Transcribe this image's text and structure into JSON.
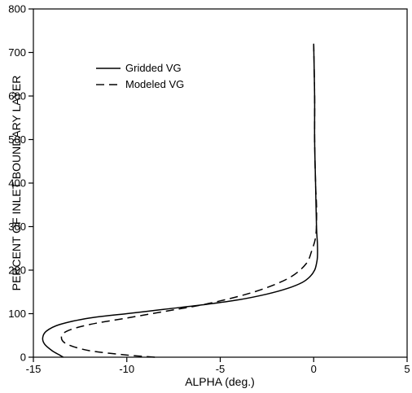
{
  "chart_data": {
    "type": "line",
    "title": "",
    "xlabel": "ALPHA (deg.)",
    "ylabel": "PERCENT OF INLET BOUNDARY LAYER",
    "xlim": [
      -15,
      5
    ],
    "ylim": [
      0,
      800
    ],
    "xticks": [
      -15,
      -10,
      -5,
      0,
      5
    ],
    "yticks": [
      0,
      100,
      200,
      300,
      400,
      500,
      600,
      700,
      800
    ],
    "xtick_labels": [
      "-15",
      "-10",
      "-5",
      "0",
      "5"
    ],
    "ytick_labels": [
      "0",
      "100",
      "200",
      "300",
      "400",
      "500",
      "600",
      "700",
      "800"
    ],
    "grid": false,
    "legend": "upper-left",
    "series": [
      {
        "name": "Gridded VG",
        "style": "solid",
        "points": [
          [
            -13.4,
            0
          ],
          [
            -13.6,
            5
          ],
          [
            -14.0,
            15
          ],
          [
            -14.4,
            30
          ],
          [
            -14.5,
            45
          ],
          [
            -14.3,
            60
          ],
          [
            -13.6,
            75
          ],
          [
            -12.0,
            90
          ],
          [
            -10.0,
            100
          ],
          [
            -8.0,
            110
          ],
          [
            -6.0,
            120
          ],
          [
            -4.0,
            132
          ],
          [
            -2.5,
            145
          ],
          [
            -1.4,
            158
          ],
          [
            -0.6,
            172
          ],
          [
            -0.2,
            185
          ],
          [
            0.05,
            200
          ],
          [
            0.15,
            215
          ],
          [
            0.2,
            230
          ],
          [
            0.2,
            260
          ],
          [
            0.15,
            300
          ],
          [
            0.1,
            400
          ],
          [
            0.05,
            500
          ],
          [
            0.05,
            600
          ],
          [
            0.0,
            720
          ]
        ]
      },
      {
        "name": "Modeled VG",
        "style": "dashed",
        "points": [
          [
            -8.5,
            0
          ],
          [
            -10.0,
            5
          ],
          [
            -12.0,
            15
          ],
          [
            -13.2,
            30
          ],
          [
            -13.5,
            45
          ],
          [
            -13.2,
            60
          ],
          [
            -12.0,
            75
          ],
          [
            -10.0,
            90
          ],
          [
            -8.0,
            105
          ],
          [
            -6.0,
            120
          ],
          [
            -4.0,
            140
          ],
          [
            -2.5,
            160
          ],
          [
            -1.2,
            185
          ],
          [
            -0.4,
            215
          ],
          [
            -0.1,
            245
          ],
          [
            0.1,
            275
          ],
          [
            0.15,
            310
          ],
          [
            0.15,
            350
          ],
          [
            0.1,
            400
          ],
          [
            0.05,
            500
          ],
          [
            0.05,
            600
          ],
          [
            0.0,
            720
          ]
        ]
      }
    ]
  },
  "colors": {
    "line": "#000000",
    "axis": "#000000",
    "background": "#ffffff"
  }
}
